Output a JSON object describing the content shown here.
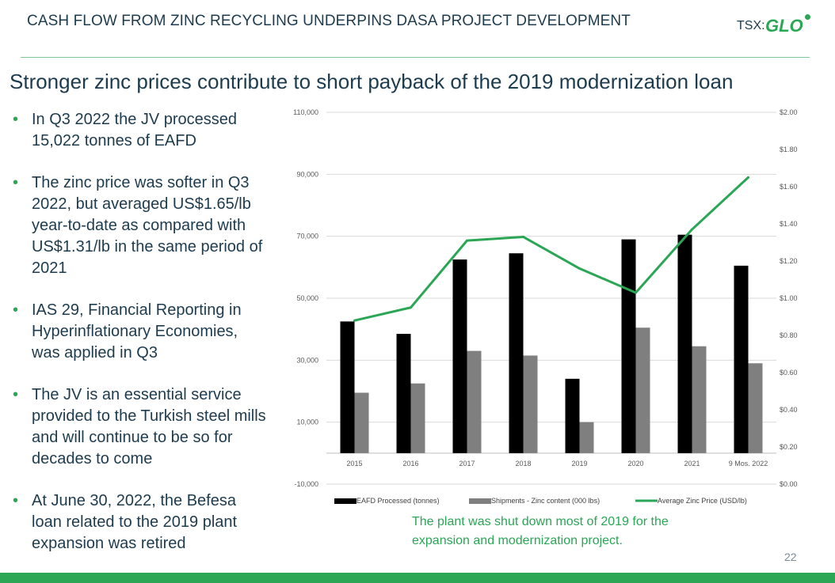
{
  "header": {
    "title": "CASH FLOW FROM ZINC RECYCLING UNDERPINS DASA PROJECT DEVELOPMENT",
    "logo_prefix": "TSX:",
    "logo_text": "GLO"
  },
  "subtitle": "Stronger zinc prices contribute to short payback of the 2019 modernization loan",
  "bullets": [
    "In Q3 2022 the JV processed 15,022 tonnes of EAFD",
    "The zinc price was softer in Q3 2022, but averaged US$1.65/lb year-to-date as compared with US$1.31/lb in the same period of 2021",
    "IAS 29, Financial Reporting in Hyperinflationary Economies, was applied in Q3",
    "The JV is an essential service provided to the Turkish steel mills and will continue to be so for decades to come",
    "At June 30, 2022, the Befesa loan related to the 2019 plant expansion was retired"
  ],
  "note": "The plant was shut down most of 2019 for the expansion and modernization project.",
  "page_number": "22",
  "colors": {
    "accent": "#2aa655",
    "bar_primary": "#000000",
    "bar_secondary": "#7f7f7f",
    "text": "#1d3b4e"
  },
  "chart_data": {
    "type": "bar",
    "title": "",
    "categories": [
      "2015",
      "2016",
      "2017",
      "2018",
      "2019",
      "2020",
      "2021",
      "9 Mos. 2022"
    ],
    "series": [
      {
        "name": "EAFD Processed (tonnes)",
        "type": "bar",
        "axis": "left",
        "color": "#000000",
        "values": [
          42500,
          38500,
          62500,
          64500,
          24000,
          69000,
          70500,
          60500
        ]
      },
      {
        "name": "Shipments - Zinc content (000 lbs)",
        "type": "bar",
        "axis": "left",
        "color": "#7f7f7f",
        "values": [
          19500,
          22500,
          33000,
          31500,
          10000,
          40500,
          34500,
          29000
        ]
      },
      {
        "name": "Average Zinc Price (USD/lb)",
        "type": "line",
        "axis": "right",
        "color": "#2aa655",
        "values": [
          0.88,
          0.95,
          1.31,
          1.33,
          1.16,
          1.03,
          1.37,
          1.65
        ]
      }
    ],
    "y_left": {
      "min": -10000,
      "max": 110000,
      "ticks": [
        "110,000",
        "90,000",
        "70,000",
        "50,000",
        "30,000",
        "10,000",
        "-10,000"
      ],
      "tick_values": [
        110000,
        90000,
        70000,
        50000,
        30000,
        10000,
        -10000
      ]
    },
    "y_right": {
      "min": 0,
      "max": 2.0,
      "ticks": [
        "$2.00",
        "$1.80",
        "$1.60",
        "$1.40",
        "$1.20",
        "$1.00",
        "$0.80",
        "$0.60",
        "$0.40",
        "$0.20",
        "$0.00"
      ],
      "tick_values": [
        2.0,
        1.8,
        1.6,
        1.4,
        1.2,
        1.0,
        0.8,
        0.6,
        0.4,
        0.2,
        0.0
      ]
    },
    "legend_position": "bottom",
    "grid": true
  }
}
